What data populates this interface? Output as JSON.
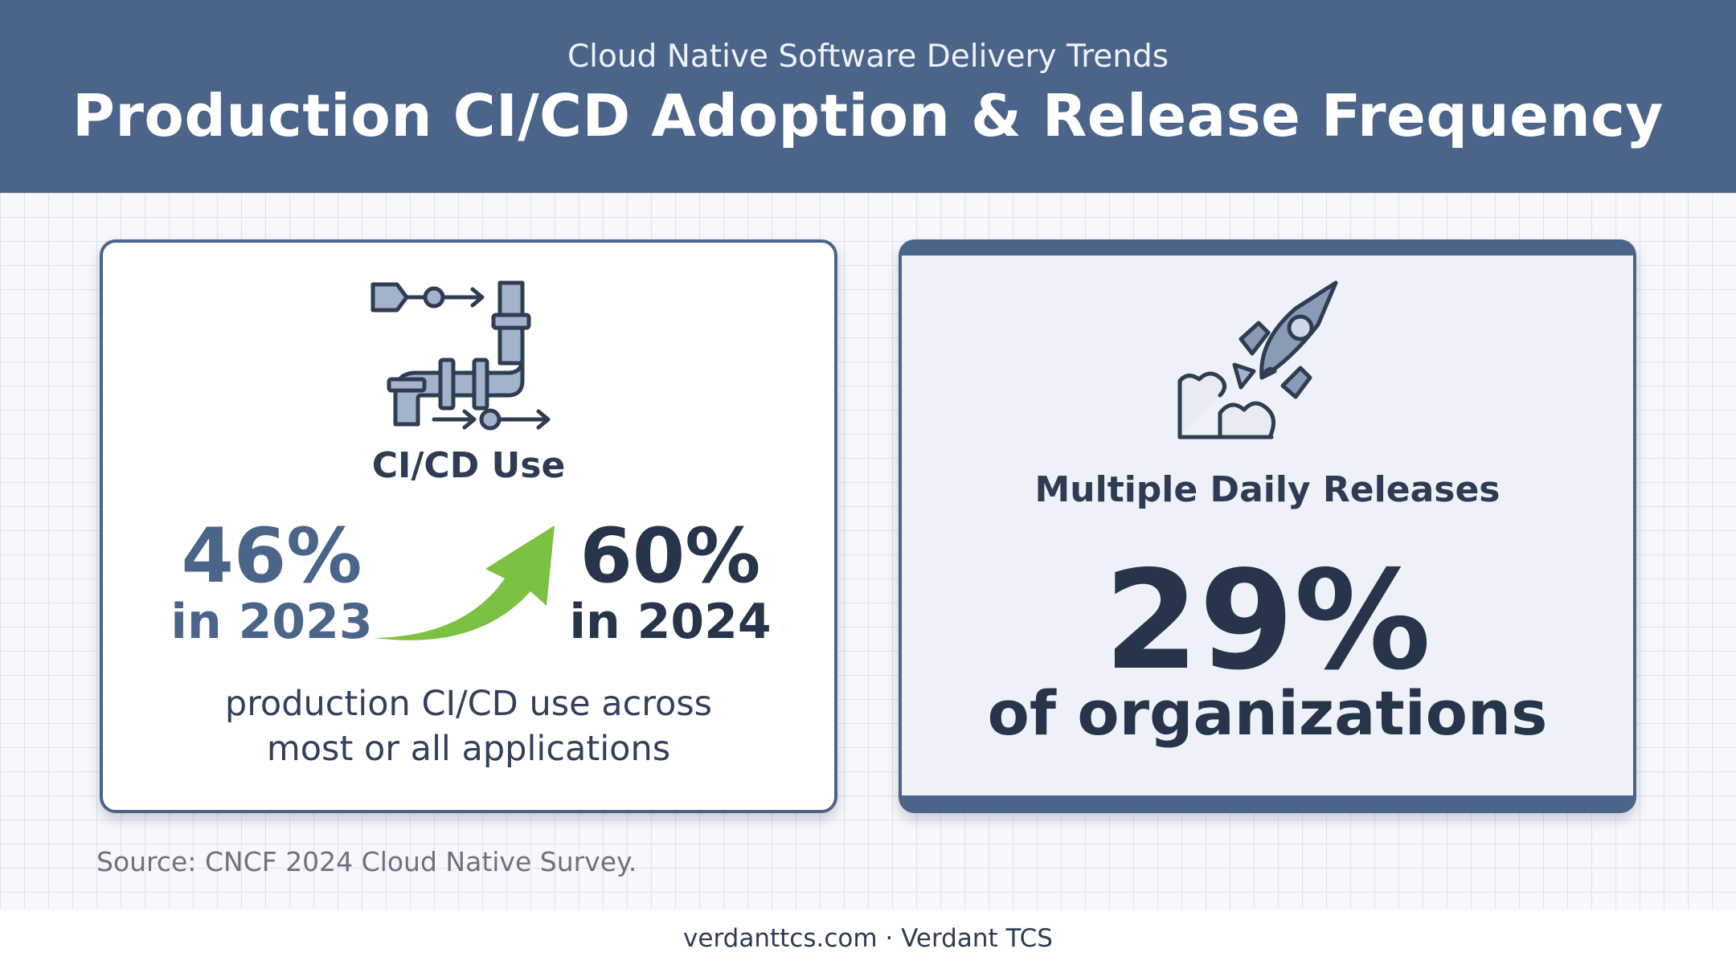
{
  "header": {
    "subtitle": "Cloud Native Software Delivery Trends",
    "title": "Production CI/CD Adoption & Release Frequency"
  },
  "left_card": {
    "icon": "pipeline-icon",
    "label": "CI/CD Use",
    "stat_2023": {
      "value": "46%",
      "year": "in 2023"
    },
    "trend_icon": "green-upward-arrow-icon",
    "stat_2024": {
      "value": "60%",
      "year": "in 2024"
    },
    "description_line1": "production CI/CD use across",
    "description_line2": "most or all applications"
  },
  "right_card": {
    "icon": "rocket-icon",
    "label": "Multiple Daily Releases",
    "value": "29%",
    "value_caption": "of organizations"
  },
  "source": "Source: CNCF 2024 Cloud Native Survey.",
  "footer": "verdanttcs.com · Verdant TCS",
  "colors": {
    "header_bg": "#4b6489",
    "dark_text": "#27354a",
    "accent_blue": "#4b6489",
    "arrow_green": "#7cc242"
  }
}
